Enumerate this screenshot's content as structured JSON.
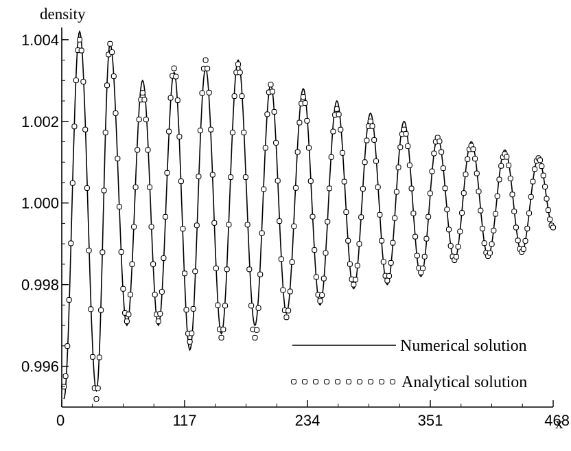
{
  "chart_data": {
    "type": "line",
    "ylabel": "density",
    "xlabel": "x",
    "xlim": [
      0,
      468
    ],
    "ylim": [
      0.995,
      1.0043
    ],
    "x_ticks": [
      "0",
      "117",
      "234",
      "351",
      "468"
    ],
    "y_ticks": [
      "0.996",
      "0.998",
      "1.000",
      "1.002",
      "1.004"
    ],
    "grid": false,
    "legend_position": "bottom-right",
    "series": [
      {
        "name": "Numerical solution",
        "style": "solid-line",
        "color": "#000000",
        "x": [
          2,
          17,
          33,
          46,
          62,
          77,
          92,
          107,
          122,
          137,
          152,
          168,
          184,
          199,
          214,
          230,
          246,
          262,
          278,
          294,
          310,
          326,
          342,
          358,
          374,
          390,
          406,
          422,
          438,
          454,
          468
        ],
        "y": [
          0.9952,
          1.0042,
          0.9954,
          1.0039,
          0.997,
          1.003,
          0.997,
          1.0032,
          0.9964,
          1.0033,
          0.9968,
          1.0035,
          0.997,
          1.0029,
          0.9973,
          1.0028,
          0.9975,
          1.0025,
          0.9979,
          1.0022,
          0.998,
          1.002,
          0.9982,
          1.0016,
          0.9986,
          1.0015,
          0.9987,
          1.0013,
          0.9988,
          1.0011,
          0.9994
        ]
      },
      {
        "name": "Analytical solution",
        "style": "open-circle-markers",
        "color": "#000000",
        "x": [
          2,
          17,
          33,
          46,
          62,
          77,
          92,
          107,
          122,
          137,
          152,
          168,
          184,
          199,
          214,
          230,
          246,
          262,
          278,
          294,
          310,
          326,
          342,
          358,
          374,
          390,
          406,
          422,
          438,
          454,
          468
        ],
        "y": [
          0.9955,
          1.004,
          0.9952,
          1.0039,
          0.9971,
          1.0027,
          0.9971,
          1.0033,
          0.9966,
          1.0035,
          0.9967,
          1.0034,
          0.9967,
          1.0029,
          0.9972,
          1.0026,
          0.9976,
          1.0023,
          0.998,
          1.002,
          0.9981,
          1.0018,
          0.9983,
          1.0016,
          0.9986,
          1.0014,
          0.9987,
          1.0012,
          0.9988,
          1.0011,
          0.9994
        ]
      }
    ]
  }
}
